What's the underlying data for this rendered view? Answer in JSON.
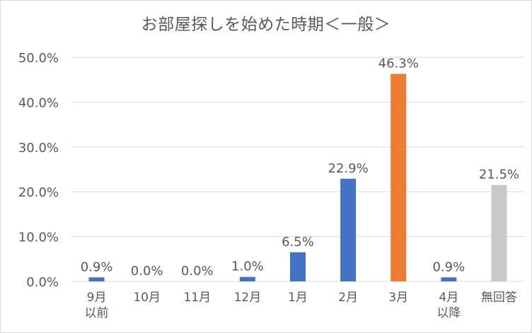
{
  "chart_data": {
    "type": "bar",
    "title": "お部屋探しを始めた時期＜一般＞",
    "xlabel": "",
    "ylabel": "",
    "categories": [
      [
        "9月",
        "以前"
      ],
      [
        "10月"
      ],
      [
        "11月"
      ],
      [
        "12月"
      ],
      [
        "1月"
      ],
      [
        "2月"
      ],
      [
        "3月"
      ],
      [
        "4月",
        "以降"
      ],
      [
        "無回答"
      ]
    ],
    "values": [
      0.9,
      0.0,
      0.0,
      1.0,
      6.5,
      22.9,
      46.3,
      0.9,
      21.5
    ],
    "data_labels": [
      "0.9%",
      "0.0%",
      "0.0%",
      "1.0%",
      "6.5%",
      "22.9%",
      "46.3%",
      "0.9%",
      "21.5%"
    ],
    "bar_colors": [
      "#4472c4",
      "#4472c4",
      "#4472c4",
      "#4472c4",
      "#4472c4",
      "#4472c4",
      "#ed7d31",
      "#4472c4",
      "#c9c9c9"
    ],
    "ylim": [
      0,
      50
    ],
    "y_ticks": [
      0,
      10,
      20,
      30,
      40,
      50
    ],
    "y_tick_labels": [
      "0.0%",
      "10.0%",
      "20.0%",
      "30.0%",
      "40.0%",
      "50.0%"
    ],
    "grid": true,
    "legend": "none"
  },
  "colors": {
    "gridline": "#d9d9d9",
    "text": "#595959"
  }
}
